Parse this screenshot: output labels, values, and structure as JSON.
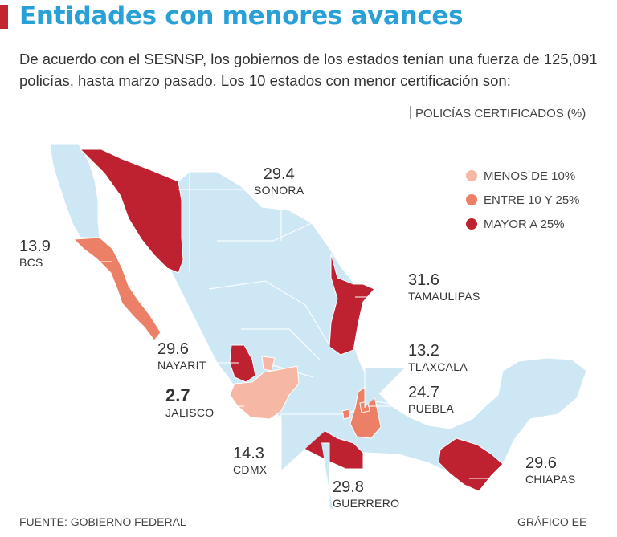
{
  "title": "Entidades con menores avances",
  "subtitle": "De acuerdo con el SESNSP, los gobiernos de los estados tenían una fuerza de 125,091 policías, hasta marzo pasado. Los 10 estados con menor certificación son:",
  "unit_label": "POLICÍAS CERTIFICADOS (%)",
  "legend": [
    {
      "label": "MENOS DE 10%",
      "color": "#f6b8a4"
    },
    {
      "label": "ENTRE 10 Y 25%",
      "color": "#ec8066"
    },
    {
      "label": "MAYOR A 25%",
      "color": "#be2231"
    }
  ],
  "states": [
    {
      "name": "SONORA",
      "value": "29.4",
      "category": "MAYOR A 25%"
    },
    {
      "name": "BCS",
      "value": "13.9",
      "category": "ENTRE 10 Y 25%"
    },
    {
      "name": "TAMAULIPAS",
      "value": "31.6",
      "category": "MAYOR A 25%"
    },
    {
      "name": "NAYARIT",
      "value": "29.6",
      "category": "MAYOR A 25%"
    },
    {
      "name": "TLAXCALA",
      "value": "13.2",
      "category": "ENTRE 10 Y 25%"
    },
    {
      "name": "JALISCO",
      "value": "2.7",
      "category": "MENOS DE 10%"
    },
    {
      "name": "PUEBLA",
      "value": "24.7",
      "category": "ENTRE 10 Y 25%"
    },
    {
      "name": "CDMX",
      "value": "14.3",
      "category": "ENTRE 10 Y 25%"
    },
    {
      "name": "CHIAPAS",
      "value": "29.6",
      "category": "MAYOR A 25%"
    },
    {
      "name": "GUERRERO",
      "value": "29.8",
      "category": "MAYOR A 25%"
    }
  ],
  "base_color": "#cde7f4",
  "footer": {
    "source": "FUENTE: GOBIERNO FEDERAL",
    "credit": "GRÁFICO EE"
  }
}
